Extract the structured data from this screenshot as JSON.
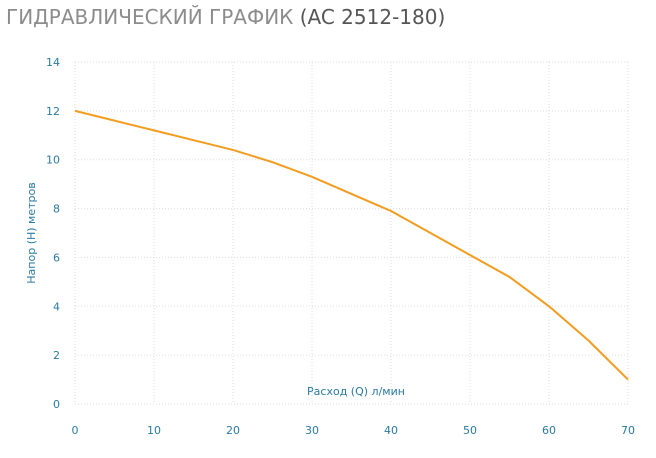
{
  "chart_data": {
    "type": "line",
    "title": "ГИДРАВЛИЧЕСКИЙ ГРАФИК",
    "subtitle": "(AC 2512-180)",
    "x_label": "Расход (Q) л/мин",
    "y_label": "Напор (H) метров",
    "x": [
      0,
      5,
      10,
      15,
      20,
      25,
      30,
      35,
      40,
      45,
      50,
      55,
      60,
      65,
      70
    ],
    "series": [
      {
        "name": "AC 2512-180",
        "color": "#f39c1f",
        "values": [
          12,
          11.6,
          11.2,
          10.8,
          10.4,
          9.9,
          9.3,
          8.6,
          7.9,
          7.0,
          6.1,
          5.2,
          4.0,
          2.6,
          1.0
        ]
      }
    ],
    "xlim": [
      0,
      70
    ],
    "xticks": [
      0,
      10,
      20,
      30,
      40,
      50,
      60,
      70
    ],
    "ylim": [
      0,
      14
    ],
    "yticks": [
      0,
      2,
      4,
      6,
      8,
      10,
      12,
      14
    ],
    "grid": true
  }
}
